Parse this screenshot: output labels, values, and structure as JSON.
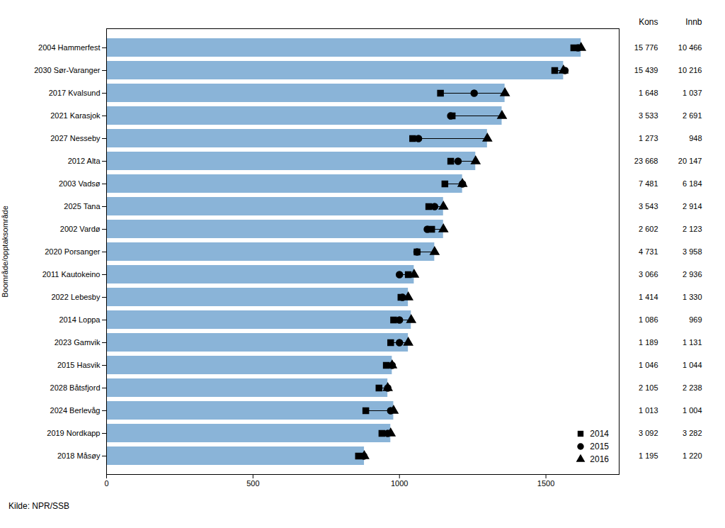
{
  "chart_data": {
    "type": "bar",
    "orientation": "horizontal",
    "categories": [
      "2004 Hammerfest",
      "2030 Sør-Varanger",
      "2017 Kvalsund",
      "2021 Karasjok",
      "2027 Nesseby",
      "2012 Alta",
      "2003 Vadsø",
      "2025 Tana",
      "2002 Vardø",
      "2020 Porsanger",
      "2011 Kautokeino",
      "2022 Lebesby",
      "2014 Loppa",
      "2023 Gamvik",
      "2015 Hasvik",
      "2028 Båtsfjord",
      "2024 Berlevåg",
      "2019 Nordkapp",
      "2018 Måsøy"
    ],
    "values": [
      1620,
      1560,
      1360,
      1350,
      1300,
      1260,
      1215,
      1150,
      1150,
      1120,
      1050,
      1030,
      1040,
      1030,
      975,
      960,
      980,
      970,
      880
    ],
    "color": "#8ab4d8",
    "series": [
      {
        "name": "2014",
        "type": "scatter",
        "marker": "square",
        "color": "black",
        "values": [
          1595,
          1530,
          1140,
          1180,
          1045,
          1175,
          1155,
          1100,
          1110,
          1060,
          1030,
          1005,
          980,
          970,
          955,
          930,
          885,
          940,
          860
        ]
      },
      {
        "name": "2015",
        "type": "scatter",
        "marker": "circle",
        "color": "black",
        "values": [
          1610,
          1565,
          1255,
          1175,
          1065,
          1200,
          1215,
          1120,
          1095,
          1060,
          1000,
          1010,
          1000,
          1000,
          975,
          960,
          970,
          960,
          878
        ]
      },
      {
        "name": "2016",
        "type": "scatter",
        "marker": "triangle",
        "color": "black",
        "values": [
          1620,
          1560,
          1360,
          1350,
          1300,
          1260,
          1215,
          1150,
          1150,
          1120,
          1050,
          1030,
          1040,
          1030,
          975,
          960,
          980,
          970,
          880
        ]
      }
    ],
    "columns": [
      {
        "name": "Kons",
        "values": [
          15776,
          15439,
          1648,
          3533,
          1273,
          23668,
          7481,
          3543,
          2602,
          4731,
          3066,
          1414,
          1086,
          1189,
          1046,
          2105,
          1013,
          3092,
          1195
        ],
        "value_labels": [
          "15 776",
          "15 439",
          "1 648",
          "3 533",
          "1 273",
          "23 668",
          "7 481",
          "3 543",
          "2 602",
          "4 731",
          "3 066",
          "1 414",
          "1 086",
          "1 189",
          "1 046",
          "2 105",
          "1 013",
          "3 092",
          "1 195"
        ]
      },
      {
        "name": "Innb",
        "values": [
          10466,
          10216,
          1037,
          2691,
          948,
          20147,
          6184,
          2914,
          2123,
          3958,
          2936,
          1330,
          969,
          1131,
          1044,
          2238,
          1004,
          3282,
          1220
        ],
        "value_labels": [
          "10 466",
          "10 216",
          "1 037",
          "2 691",
          "948",
          "20 147",
          "6 184",
          "2 914",
          "2 123",
          "3 958",
          "2 936",
          "1 330",
          "969",
          "1 131",
          "1 044",
          "2 238",
          "1 004",
          "3 282",
          "1 220"
        ]
      }
    ],
    "xlim": [
      0,
      1750
    ],
    "xticks": [
      0,
      500,
      1000,
      1500
    ],
    "ylabel": "Boområde/opptaksområde",
    "legend": "lower right",
    "annotations": [
      "Kilde: NPR/SSB"
    ]
  }
}
